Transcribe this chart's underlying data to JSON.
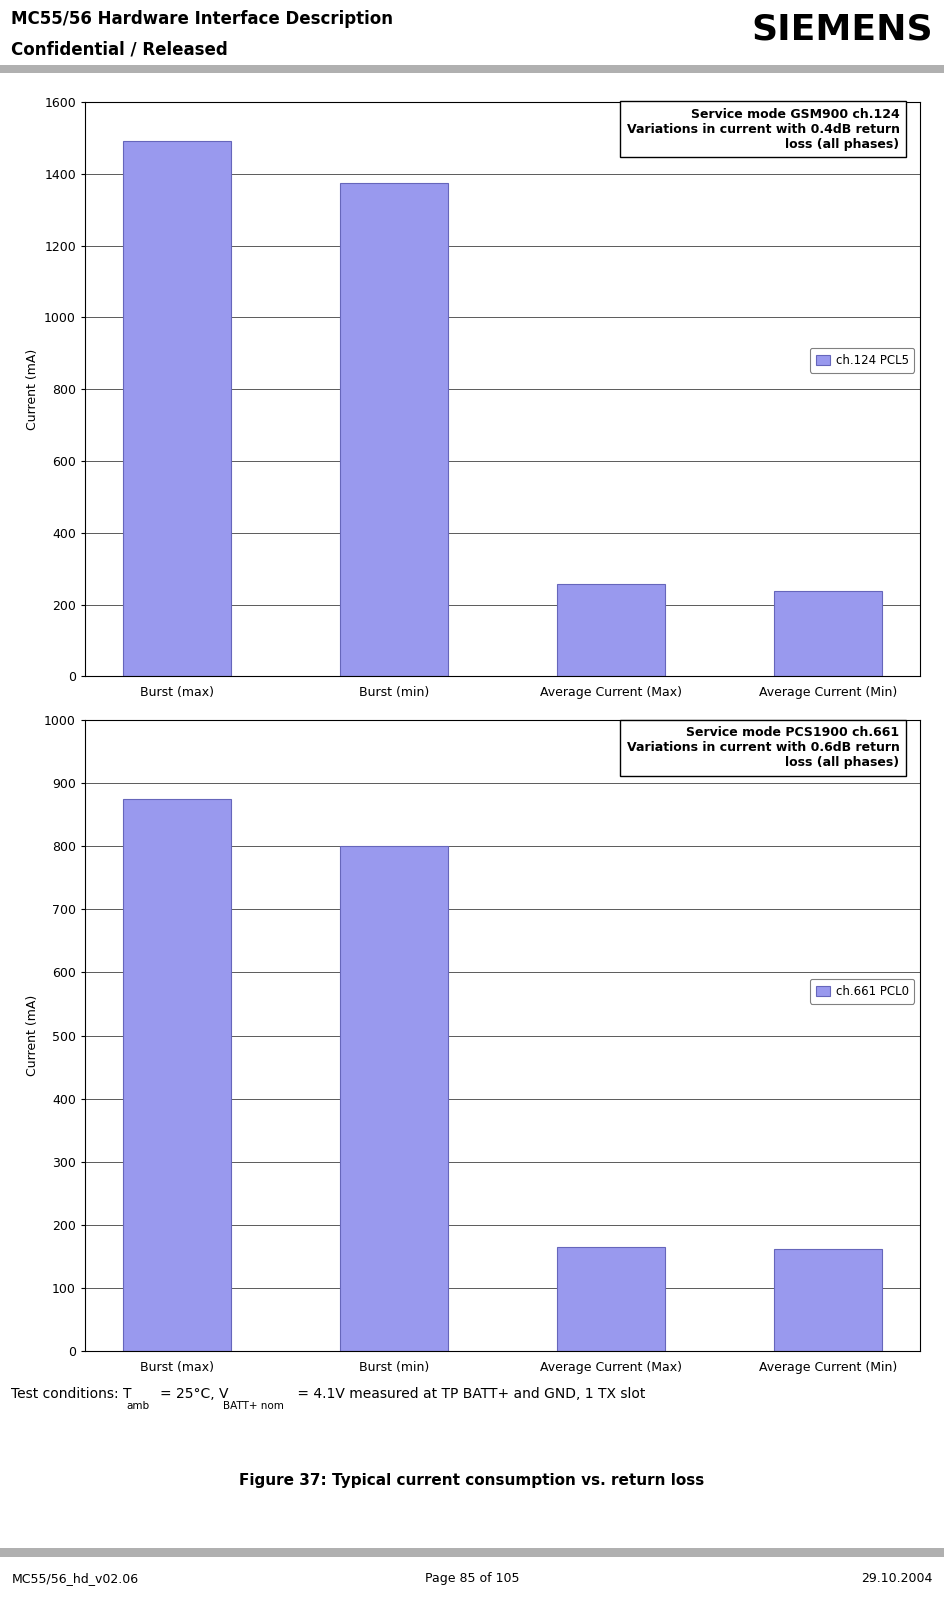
{
  "chart1": {
    "categories": [
      "Burst (max)",
      "Burst (min)",
      "Average Current (Max)",
      "Average Current (Min)"
    ],
    "values": [
      1490,
      1375,
      258,
      238
    ],
    "ylim": [
      0,
      1600
    ],
    "yticks": [
      0,
      200,
      400,
      600,
      800,
      1000,
      1200,
      1400,
      1600
    ],
    "ylabel": "Current (mA)",
    "legend_label": "ch.124 PCL5",
    "title_box": "Service mode GSM900 ch.124\nVariations in current with 0.4dB return\nloss (all phases)",
    "bar_color": "#9999ee",
    "bar_edge_color": "#6666bb"
  },
  "chart2": {
    "categories": [
      "Burst (max)",
      "Burst (min)",
      "Average Current (Max)",
      "Average Current (Min)"
    ],
    "values": [
      875,
      800,
      165,
      162
    ],
    "ylim": [
      0,
      1000
    ],
    "yticks": [
      0,
      100,
      200,
      300,
      400,
      500,
      600,
      700,
      800,
      900,
      1000
    ],
    "ylabel": "Current (mA)",
    "legend_label": "ch.661 PCL0",
    "title_box": "Service mode PCS1900 ch.661\nVariations in current with 0.6dB return\nloss (all phases)",
    "bar_color": "#9999ee",
    "bar_edge_color": "#6666bb"
  },
  "header_left_line1": "MC55/56 Hardware Interface Description",
  "header_left_line2": "Confidential / Released",
  "header_right": "SIEMENS",
  "footer_left": "MC55/56_hd_v02.06",
  "footer_center": "Page 85 of 105",
  "footer_right": "29.10.2004",
  "caption_line2": "Figure 37: Typical current consumption vs. return loss",
  "header_bar_color": "#b0b0b0",
  "footer_bar_color": "#b0b0b0",
  "bg_color": "#ffffff"
}
